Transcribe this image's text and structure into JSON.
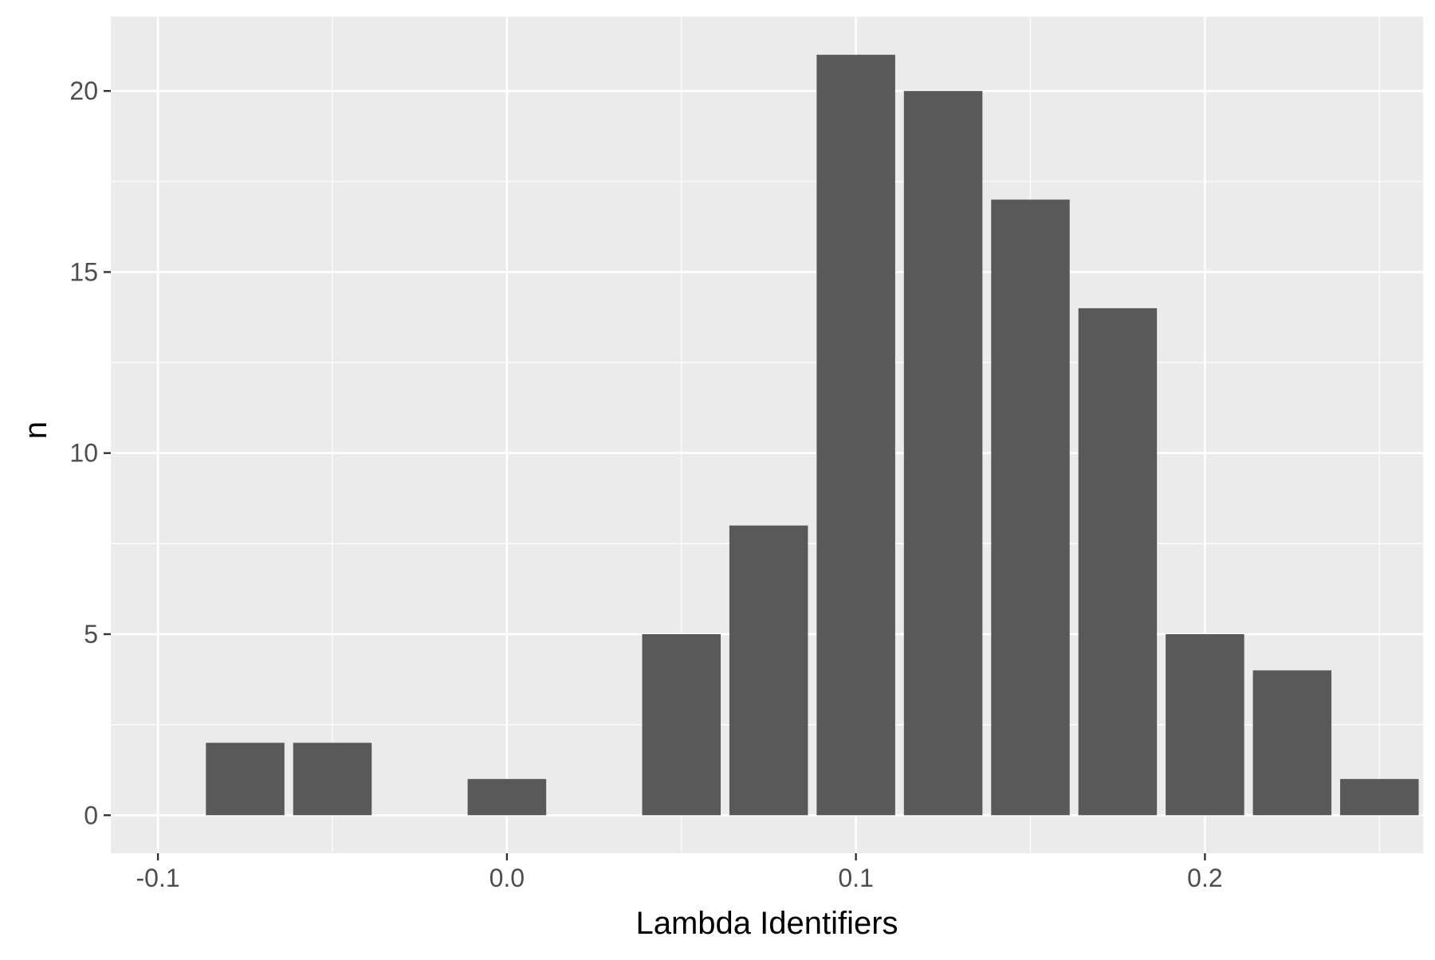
{
  "chart_data": {
    "type": "bar",
    "title": "",
    "xlabel": "Lambda Identifiers",
    "ylabel": "n",
    "x": [
      -0.075,
      -0.05,
      0.0,
      0.05,
      0.075,
      0.1,
      0.125,
      0.15,
      0.175,
      0.2,
      0.225,
      0.25
    ],
    "values": [
      2,
      2,
      1,
      5,
      8,
      21,
      20,
      17,
      14,
      5,
      4,
      1
    ],
    "bar_width": 0.0225,
    "xlim": [
      -0.1135,
      0.2625
    ],
    "ylim": [
      -1.05,
      22.05
    ],
    "x_ticks": [
      -0.1,
      0.0,
      0.1,
      0.2
    ],
    "x_tick_labels": [
      "-0.1",
      "0.0",
      "0.1",
      "0.2"
    ],
    "x_minor_ticks": [
      -0.05,
      0.05,
      0.15,
      0.25
    ],
    "y_ticks": [
      0,
      5,
      10,
      15,
      20
    ],
    "y_tick_labels": [
      "0",
      "5",
      "10",
      "15",
      "20"
    ],
    "y_minor_ticks": [
      2.5,
      7.5,
      12.5,
      17.5
    ],
    "grid": true,
    "legend": "none",
    "colors": {
      "panel": "#ebebeb",
      "grid": "#ffffff",
      "bar": "#595959",
      "tick_text": "#4d4d4d",
      "tick_mark": "#333333"
    }
  }
}
